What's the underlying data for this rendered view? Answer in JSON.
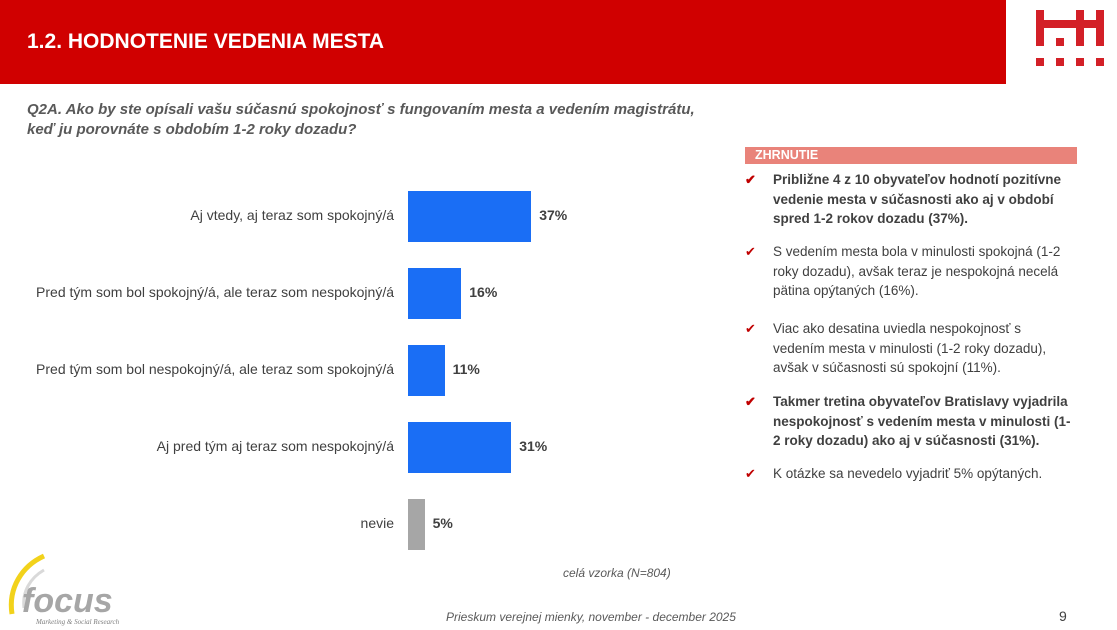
{
  "header": {
    "title": "1.2. HODNOTENIE VEDENIA MESTA",
    "logo_color": "#d32027",
    "banner_color": "#d00000"
  },
  "question": "Q2A. Ako by ste opísali vašu súčasnú spokojnosť s fungovaním mesta a vedením magistrátu, keď ju porovnáte s obdobím 1-2 roky dozadu?",
  "chart_data": {
    "type": "bar",
    "orientation": "horizontal",
    "categories": [
      "Aj vtedy, aj teraz som spokojný/á",
      "Pred tým som bol spokojný/á, ale teraz som nespokojný/á",
      "Pred tým som bol nespokojný/á, ale teraz som spokojný/á",
      "Aj pred tým aj teraz som nespokojný/á",
      "nevie"
    ],
    "values": [
      37,
      16,
      11,
      31,
      5
    ],
    "labels": [
      "37%",
      "16%",
      "11%",
      "31%",
      "5%"
    ],
    "colors": [
      "#1a6ef5",
      "#1a6ef5",
      "#1a6ef5",
      "#1a6ef5",
      "#a6a6a6"
    ],
    "grid": false,
    "note": "celá vzorka (N=804)"
  },
  "summary": {
    "title": "ZHRNUTIE",
    "items": [
      {
        "text": "Približne 4 z 10 obyvateľov hodnotí pozitívne vedenie mesta v súčasnosti ako aj v období spred 1-2 rokov dozadu (37%).",
        "bold": true
      },
      {
        "text": "S vedením mesta bola v minulosti spokojná (1-2 roky dozadu), avšak teraz je nespokojná necelá pätina opýtaných (16%).",
        "bold": false
      },
      {
        "text": "Viac ako desatina uviedla nespokojnosť s vedením mesta v minulosti (1-2 roky dozadu), avšak v súčasnosti sú spokojní (11%).",
        "bold": false
      },
      {
        "text": "Takmer tretina obyvateľov Bratislavy vyjadrila nespokojnosť s vedením mesta v minulosti (1-2 roky dozadu) ako aj v súčasnosti (31%).",
        "bold": true
      },
      {
        "text": "K otázke sa nevedelo vyjadriť 5% opýtaných.",
        "bold": false
      }
    ]
  },
  "footer": {
    "source": "Prieskum verejnej mienky, november - december 2025",
    "page": "9",
    "logo_text": "focus",
    "logo_sub": "Marketing & Social Research"
  }
}
